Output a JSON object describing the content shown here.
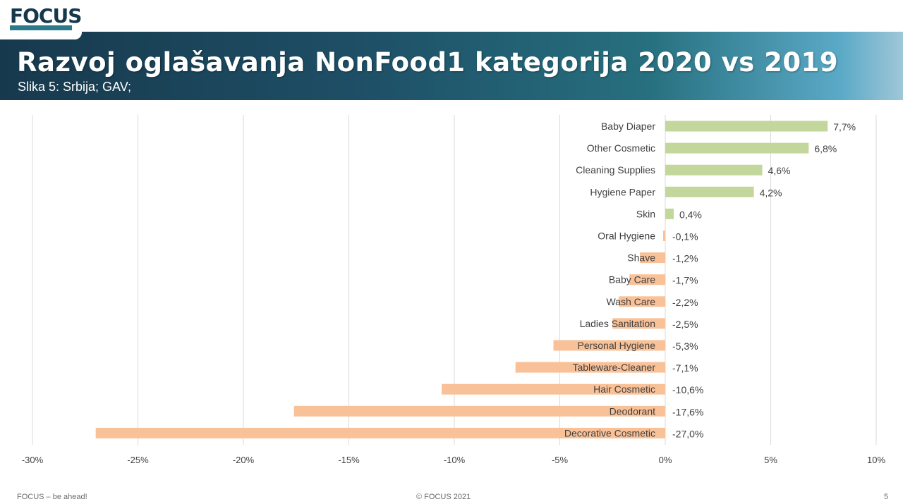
{
  "logo": "FOCUS",
  "header": {
    "title": "Razvoj oglašavanja NonFood1 kategorija 2020 vs 2019",
    "subtitle": "Slika 5: Srbija; GAV;"
  },
  "footer": {
    "left": "FOCUS – be ahead!",
    "center": "© FOCUS 2021",
    "page_number": "5"
  },
  "colors": {
    "positive": "#c3d69b",
    "negative": "#f9c197",
    "grid": "#d9d9d9",
    "text": "#404040"
  },
  "chart_data": {
    "type": "bar",
    "orientation": "horizontal",
    "categories": [
      "Baby Diaper",
      "Other Cosmetic",
      "Cleaning Supplies",
      "Hygiene Paper",
      "Skin",
      "Oral Hygiene",
      "Shave",
      "Baby Care",
      "Wash Care",
      "Ladies Sanitation",
      "Personal Hygiene",
      "Tableware-Cleaner",
      "Hair Cosmetic",
      "Deodorant",
      "Decorative Cosmetic"
    ],
    "values": [
      7.7,
      6.8,
      4.6,
      4.2,
      0.4,
      -0.1,
      -1.2,
      -1.7,
      -2.2,
      -2.5,
      -5.3,
      -7.1,
      -10.6,
      -17.6,
      -27.0
    ],
    "value_labels": [
      "7,7%",
      "6,8%",
      "4,6%",
      "4,2%",
      "0,4%",
      "-0,1%",
      "-1,2%",
      "-1,7%",
      "-2,2%",
      "-2,5%",
      "-5,3%",
      "-7,1%",
      "-10,6%",
      "-17,6%",
      "-27,0%"
    ],
    "xlim": [
      -30,
      10
    ],
    "xticks": [
      -30,
      -25,
      -20,
      -15,
      -10,
      -5,
      0,
      5,
      10
    ],
    "xtick_labels": [
      "-30%",
      "-25%",
      "-20%",
      "-15%",
      "-10%",
      "-5%",
      "0%",
      "5%",
      "10%"
    ],
    "grid": true,
    "legend": false
  }
}
